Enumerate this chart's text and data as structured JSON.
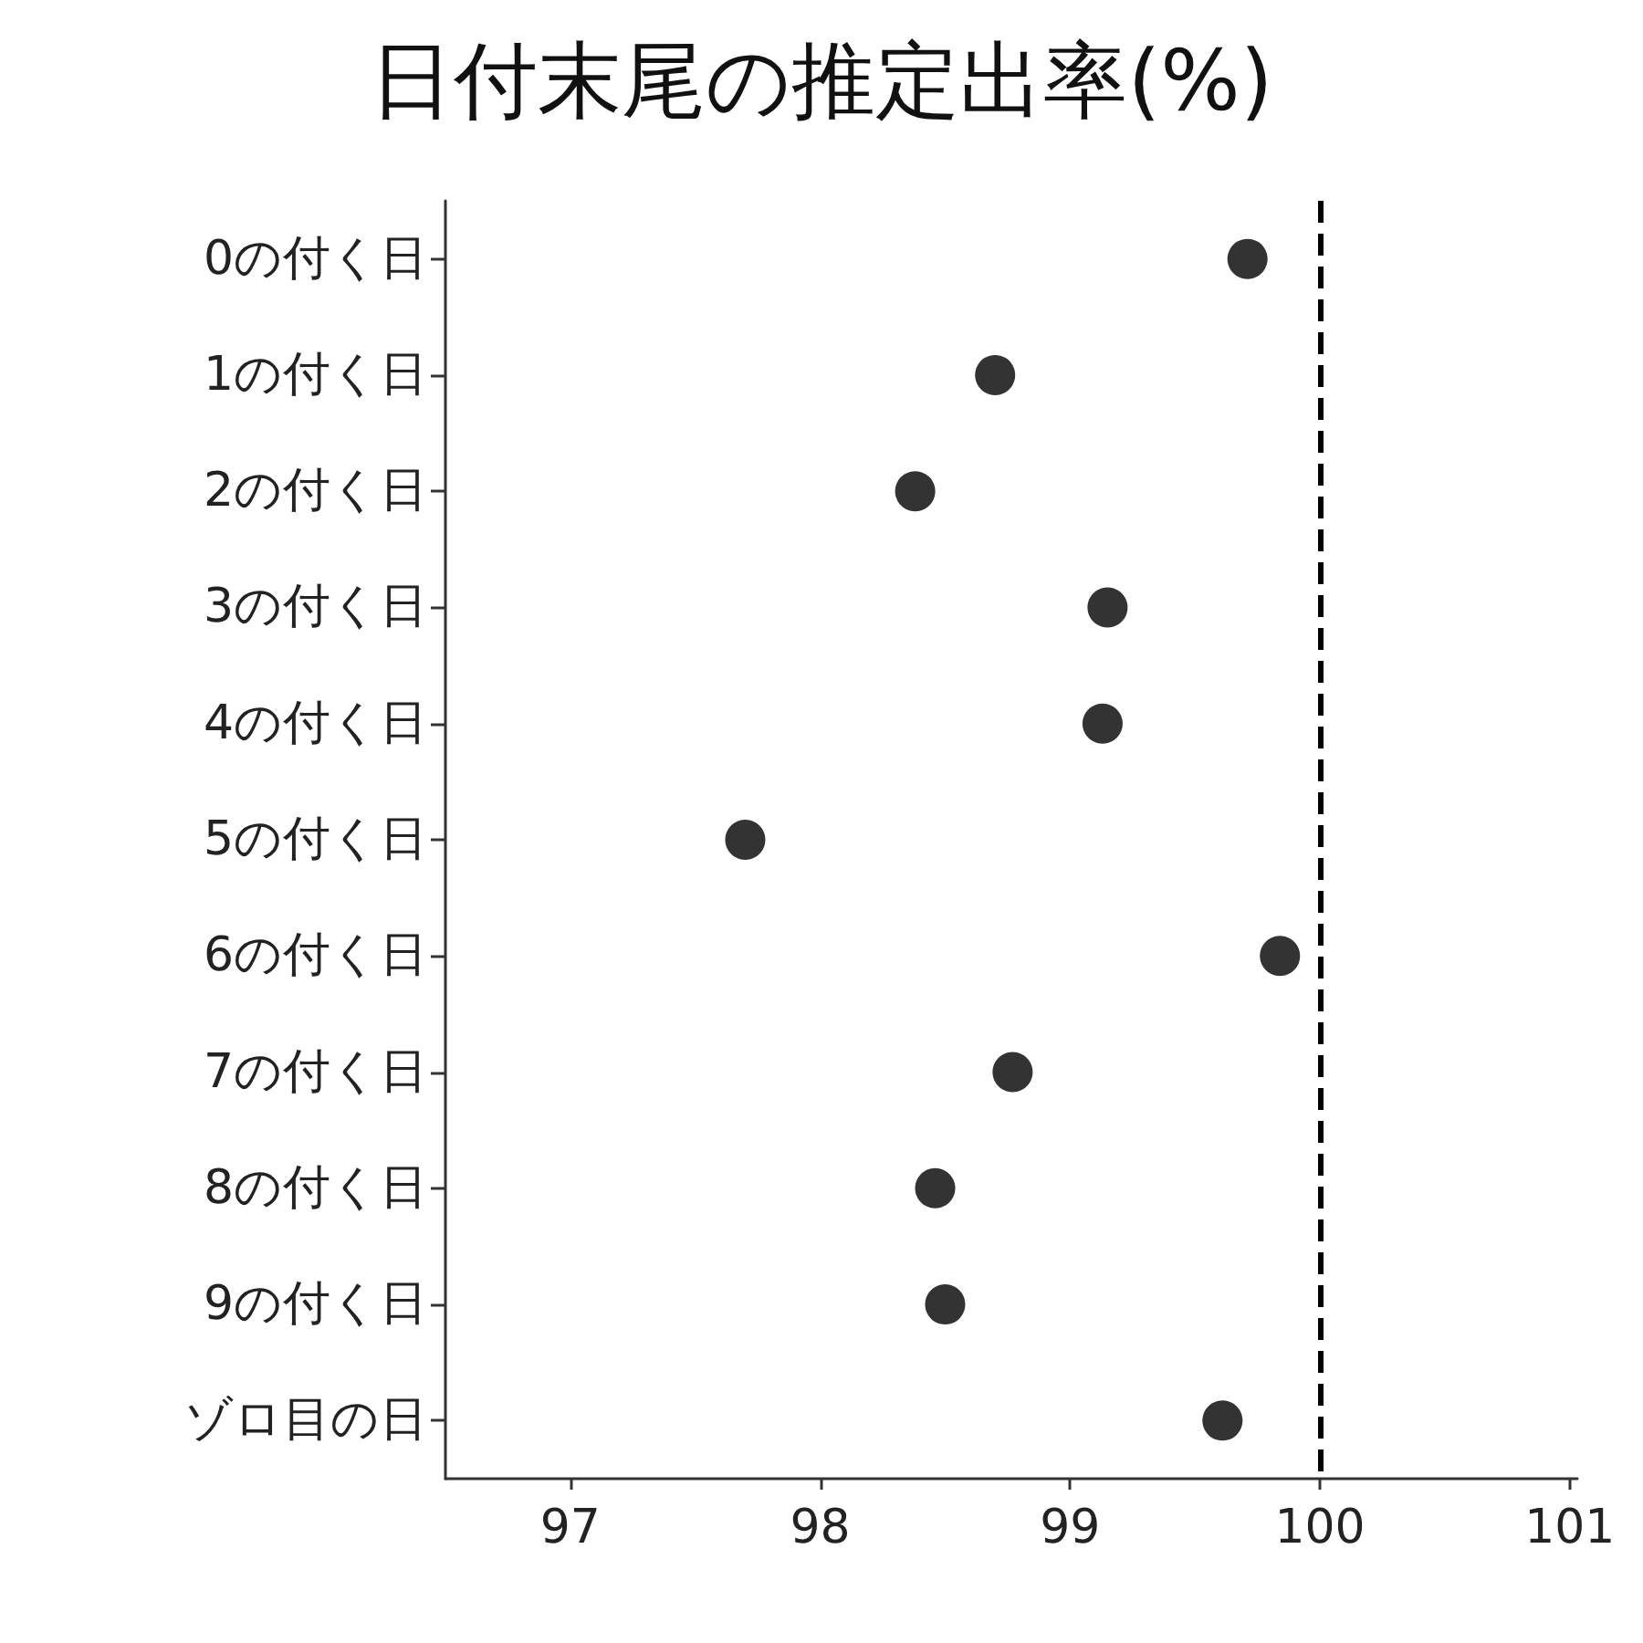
{
  "chart_data": {
    "type": "scatter",
    "title": "日付末尾の推定出率(%)",
    "orientation": "horizontal",
    "categories": [
      "0の付く日",
      "1の付く日",
      "2の付く日",
      "3の付く日",
      "4の付く日",
      "5の付く日",
      "6の付く日",
      "7の付く日",
      "8の付く日",
      "9の付く日",
      "ゾロ目の日"
    ],
    "values": [
      99.71,
      98.7,
      98.38,
      99.15,
      99.13,
      97.7,
      99.84,
      98.77,
      98.46,
      98.5,
      99.61
    ],
    "color": "#000000",
    "marker": "circle",
    "grid": false,
    "xlim": [
      96.5,
      101.03
    ],
    "xticks": [
      97,
      98,
      99,
      100,
      101
    ],
    "ref_lines": [
      {
        "axis": "x",
        "value": 100,
        "color": "#000000",
        "line_style": "dashed"
      }
    ]
  }
}
